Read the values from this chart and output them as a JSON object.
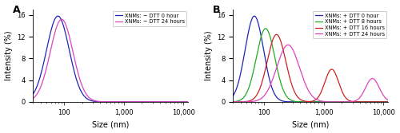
{
  "panel_A": {
    "label": "A",
    "curves": [
      {
        "label": "XNMs: − DTT 0 hour",
        "color": "#2222bb",
        "peak_nm": 78,
        "sigma_log": 0.19,
        "amplitude": 15.8
      },
      {
        "label": "XNMs: − DTT 24 hours",
        "color": "#dd44bb",
        "peak_nm": 90,
        "sigma_log": 0.19,
        "amplitude": 15.2
      }
    ],
    "xlim": [
      30,
      12000
    ],
    "ylim": [
      0,
      17
    ],
    "yticks": [
      0,
      4,
      8,
      12,
      16
    ],
    "xtick_vals": [
      100,
      1000,
      10000
    ],
    "xtick_labels": [
      "100",
      "1,000",
      "10,000"
    ],
    "xlabel": "Size (nm)",
    "ylabel": "Intensity (%)"
  },
  "panel_B": {
    "label": "B",
    "curves": [
      {
        "label": "XNMs: + DTT 0 hour",
        "color": "#2222bb",
        "peaks": [
          {
            "nm": 68,
            "sigma_log": 0.155,
            "amplitude": 15.8
          }
        ]
      },
      {
        "label": "XNMs: + DTT 8 hours",
        "color": "#22aa22",
        "peaks": [
          {
            "nm": 105,
            "sigma_log": 0.155,
            "amplitude": 13.5
          }
        ]
      },
      {
        "label": "XNMs: + DTT 16 hours",
        "color": "#cc2222",
        "peaks": [
          {
            "nm": 160,
            "sigma_log": 0.155,
            "amplitude": 12.4
          },
          {
            "nm": 1350,
            "sigma_log": 0.115,
            "amplitude": 6.0
          }
        ]
      },
      {
        "label": "XNMs: + DTT 24 hours",
        "color": "#dd44bb",
        "peaks": [
          {
            "nm": 250,
            "sigma_log": 0.19,
            "amplitude": 10.5
          },
          {
            "nm": 6500,
            "sigma_log": 0.115,
            "amplitude": 4.3
          }
        ]
      }
    ],
    "xlim": [
      30,
      12000
    ],
    "ylim": [
      0,
      17
    ],
    "yticks": [
      0,
      4,
      8,
      12,
      16
    ],
    "xtick_vals": [
      100,
      1000,
      10000
    ],
    "xtick_labels": [
      "100",
      "1,000",
      "10,000"
    ],
    "xlabel": "Size (nm)",
    "ylabel": "Intensity (%)"
  }
}
